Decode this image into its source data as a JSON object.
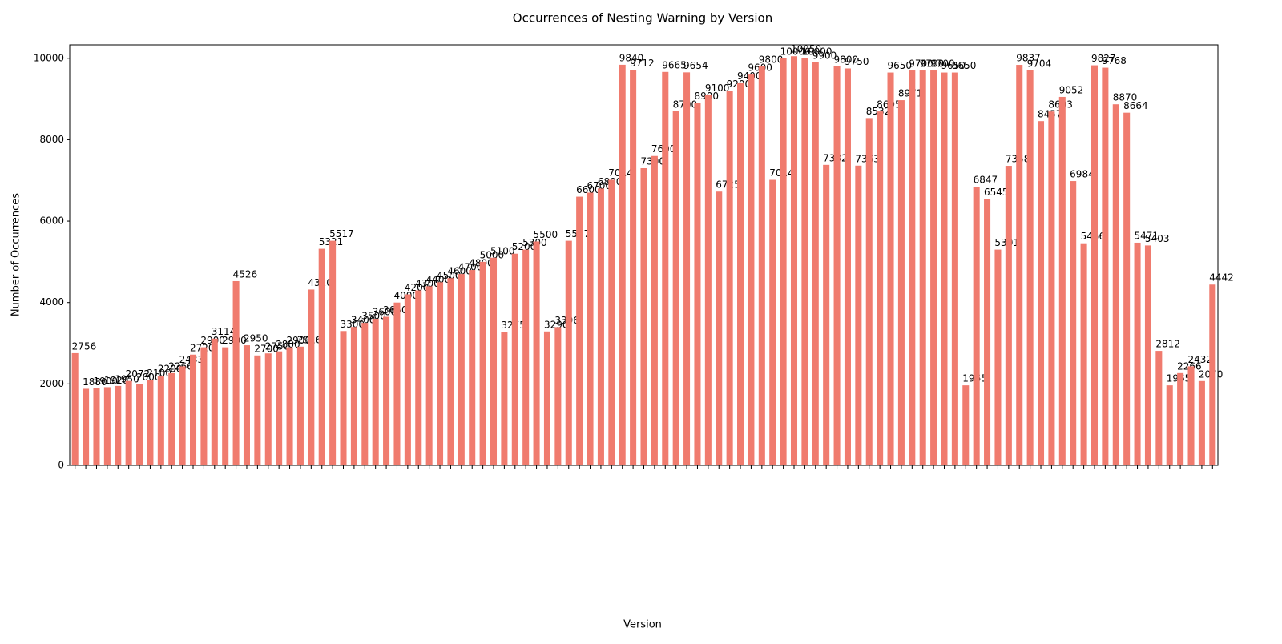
{
  "chart_data": {
    "type": "bar",
    "title": "Occurrences of Nesting Warning by Version",
    "xlabel": "Version",
    "ylabel": "Number of Occurrences",
    "color": "#f07b6e",
    "ylim": [
      0,
      10330
    ],
    "yticks": [
      0,
      2000,
      4000,
      6000,
      8000,
      10000
    ],
    "categories": [
      null,
      null,
      null,
      null,
      null,
      null,
      null,
      null,
      null,
      null,
      null,
      null,
      null,
      null,
      null,
      null,
      null,
      null,
      null,
      null,
      null,
      null,
      null,
      null,
      null,
      null,
      null,
      null,
      null,
      null,
      null,
      null,
      null,
      null,
      null,
      null,
      null,
      null,
      null,
      null,
      null,
      null,
      null,
      null,
      null,
      null,
      null,
      null,
      null,
      null,
      null,
      null,
      null,
      null,
      null,
      null,
      null,
      null,
      null,
      null,
      null,
      null,
      null,
      null,
      null,
      null,
      null,
      null,
      null,
      null,
      null,
      null,
      null,
      null,
      null,
      null,
      null,
      null,
      null,
      null,
      null,
      null,
      null,
      null,
      null,
      null,
      null,
      null,
      null,
      null,
      null,
      null,
      null,
      null,
      null,
      null,
      null,
      null,
      null,
      null,
      null,
      null,
      null,
      null,
      null,
      null,
      null
    ],
    "values": [
      2756,
      1880,
      1900,
      1920,
      1950,
      2072,
      2000,
      2100,
      2200,
      2266,
      2433,
      2720,
      2900,
      3114,
      2900,
      4526,
      2950,
      2700,
      2750,
      2800,
      2900,
      2916,
      4320,
      5321,
      5517,
      3300,
      3400,
      3500,
      3600,
      3650,
      4000,
      4200,
      4300,
      4400,
      4500,
      4600,
      4700,
      4800,
      5000,
      5100,
      3275,
      5200,
      5300,
      5500,
      3290,
      3396,
      5517,
      6600,
      6700,
      6800,
      7014,
      9840,
      9712,
      7300,
      7600,
      9665,
      8700,
      9654,
      8900,
      9100,
      6725,
      9200,
      9400,
      9600,
      9800,
      7014,
      10000,
      10050,
      10000,
      9900,
      7382,
      9800,
      9750,
      7363,
      8532,
      8695,
      9650,
      8971,
      9700,
      9700,
      9700,
      9650,
      9650,
      1965,
      6847,
      6545,
      5301,
      7358,
      9837,
      9704,
      8457,
      8693,
      9052,
      6984,
      5456,
      9827,
      9768,
      8870,
      8664,
      5471,
      5403,
      2812,
      1965,
      2266,
      2432,
      2070,
      4442
    ]
  }
}
